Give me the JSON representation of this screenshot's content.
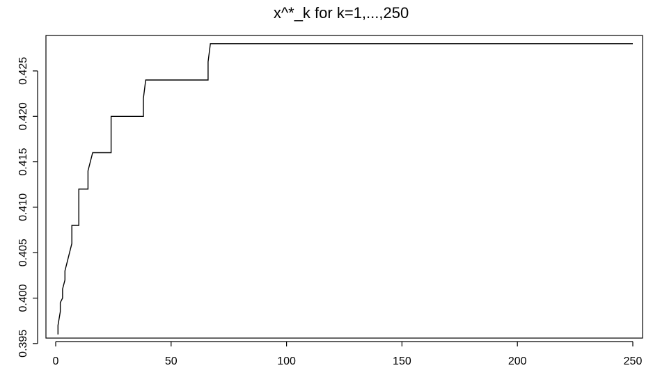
{
  "chart_data": {
    "type": "line",
    "title": "x^*_k for k=1,...,250",
    "xlabel": "",
    "ylabel": "",
    "xlim": [
      0,
      250
    ],
    "ylim": [
      0.3956,
      0.4289
    ],
    "xticks": [
      0,
      50,
      100,
      150,
      200,
      250
    ],
    "yticks": [
      0.395,
      0.4,
      0.405,
      0.41,
      0.415,
      0.42,
      0.425
    ],
    "xtick_labels": [
      "0",
      "50",
      "100",
      "150",
      "200",
      "250"
    ],
    "ytick_labels": [
      "0.395",
      "0.400",
      "0.405",
      "0.410",
      "0.415",
      "0.420",
      "0.425"
    ],
    "grid": false,
    "legend": "none",
    "line_color": "#000000",
    "series": [
      {
        "x": [
          1,
          1,
          2,
          2,
          3,
          3,
          4,
          4,
          5,
          5,
          7,
          7,
          10,
          10,
          14,
          14,
          16,
          16,
          24,
          24,
          25,
          25,
          38,
          38,
          39,
          39,
          66,
          66,
          67,
          67,
          250
        ],
        "y": [
          0.396,
          0.397,
          0.3985,
          0.3995,
          0.4,
          0.401,
          0.402,
          0.403,
          0.404,
          0.404,
          0.406,
          0.408,
          0.408,
          0.412,
          0.412,
          0.414,
          0.416,
          0.416,
          0.416,
          0.42,
          0.42,
          0.42,
          0.42,
          0.422,
          0.424,
          0.424,
          0.424,
          0.426,
          0.428,
          0.428,
          0.428
        ]
      }
    ]
  }
}
